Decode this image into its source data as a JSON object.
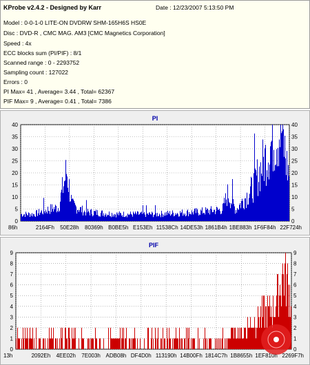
{
  "header": {
    "title": "KProbe v2.4.2 - Designed by Karr",
    "date": "Date : 12/23/2007 5:13:50 PM",
    "lines": [
      "Model : 0-0-1-0 LITE-ON DVDRW SHM-165H6S HS0E",
      "Disc : DVD-R , CMC MAG. AM3 [CMC Magnetics Corporation]",
      "Speed : 4x",
      "ECC blocks sum (PI/PIF) : 8/1",
      "Scanned range : 0 - 2293752",
      "Sampling count : 127022",
      "Errors : 0",
      "PI Max= 41 , Average= 3.44 , Total= 62367",
      "PIF Max= 9 , Average= 0.41 , Total= 7386"
    ]
  },
  "colors": {
    "pi": "#0000cc",
    "pif": "#cc0000",
    "title": "#0000aa",
    "bg": "#efefef"
  },
  "chart_data": [
    {
      "type": "bar",
      "title": "PI",
      "ylim": [
        0,
        40
      ],
      "yticks": [
        0,
        5,
        10,
        15,
        20,
        25,
        30,
        35,
        40
      ],
      "xticks": [
        "86h",
        "2164Fh",
        "50E28h",
        "80369h",
        "B0BE5h",
        "E153Eh",
        "11538Ch",
        "14DE53h",
        "1861B4h",
        "1BE883h",
        "1F6F84h",
        "22F724h"
      ],
      "grid": true,
      "profile": [
        {
          "x": 0.0,
          "y": 3
        },
        {
          "x": 0.05,
          "y": 3
        },
        {
          "x": 0.1,
          "y": 5
        },
        {
          "x": 0.14,
          "y": 6
        },
        {
          "x": 0.17,
          "y": 22
        },
        {
          "x": 0.19,
          "y": 7
        },
        {
          "x": 0.24,
          "y": 4
        },
        {
          "x": 0.36,
          "y": 3
        },
        {
          "x": 0.5,
          "y": 3
        },
        {
          "x": 0.66,
          "y": 4
        },
        {
          "x": 0.75,
          "y": 5
        },
        {
          "x": 0.77,
          "y": 12
        },
        {
          "x": 0.8,
          "y": 5
        },
        {
          "x": 0.86,
          "y": 14
        },
        {
          "x": 0.9,
          "y": 25
        },
        {
          "x": 0.94,
          "y": 36
        },
        {
          "x": 0.97,
          "y": 40
        },
        {
          "x": 0.99,
          "y": 24
        },
        {
          "x": 1.0,
          "y": 20
        }
      ]
    },
    {
      "type": "bar",
      "title": "PIF",
      "ylim": [
        0,
        9
      ],
      "yticks": [
        0,
        1,
        2,
        3,
        4,
        5,
        6,
        7,
        8,
        9
      ],
      "xticks": [
        "13h",
        "2092Eh",
        "4EE02h",
        "7E003h",
        "ADB08h",
        "DF4D0h",
        "113190h",
        "14B00Fh",
        "1814C7h",
        "1B8655h",
        "1EF810h",
        "2269F7h"
      ],
      "grid": true,
      "profile": [
        {
          "x": 0.0,
          "y": 1
        },
        {
          "x": 0.1,
          "y": 1
        },
        {
          "x": 0.2,
          "y": 1
        },
        {
          "x": 0.3,
          "y": 1
        },
        {
          "x": 0.4,
          "y": 1
        },
        {
          "x": 0.5,
          "y": 1
        },
        {
          "x": 0.6,
          "y": 1
        },
        {
          "x": 0.7,
          "y": 1
        },
        {
          "x": 0.78,
          "y": 2
        },
        {
          "x": 0.82,
          "y": 2
        },
        {
          "x": 0.86,
          "y": 3
        },
        {
          "x": 0.9,
          "y": 4
        },
        {
          "x": 0.94,
          "y": 5
        },
        {
          "x": 0.97,
          "y": 9
        },
        {
          "x": 1.0,
          "y": 6
        }
      ]
    }
  ]
}
